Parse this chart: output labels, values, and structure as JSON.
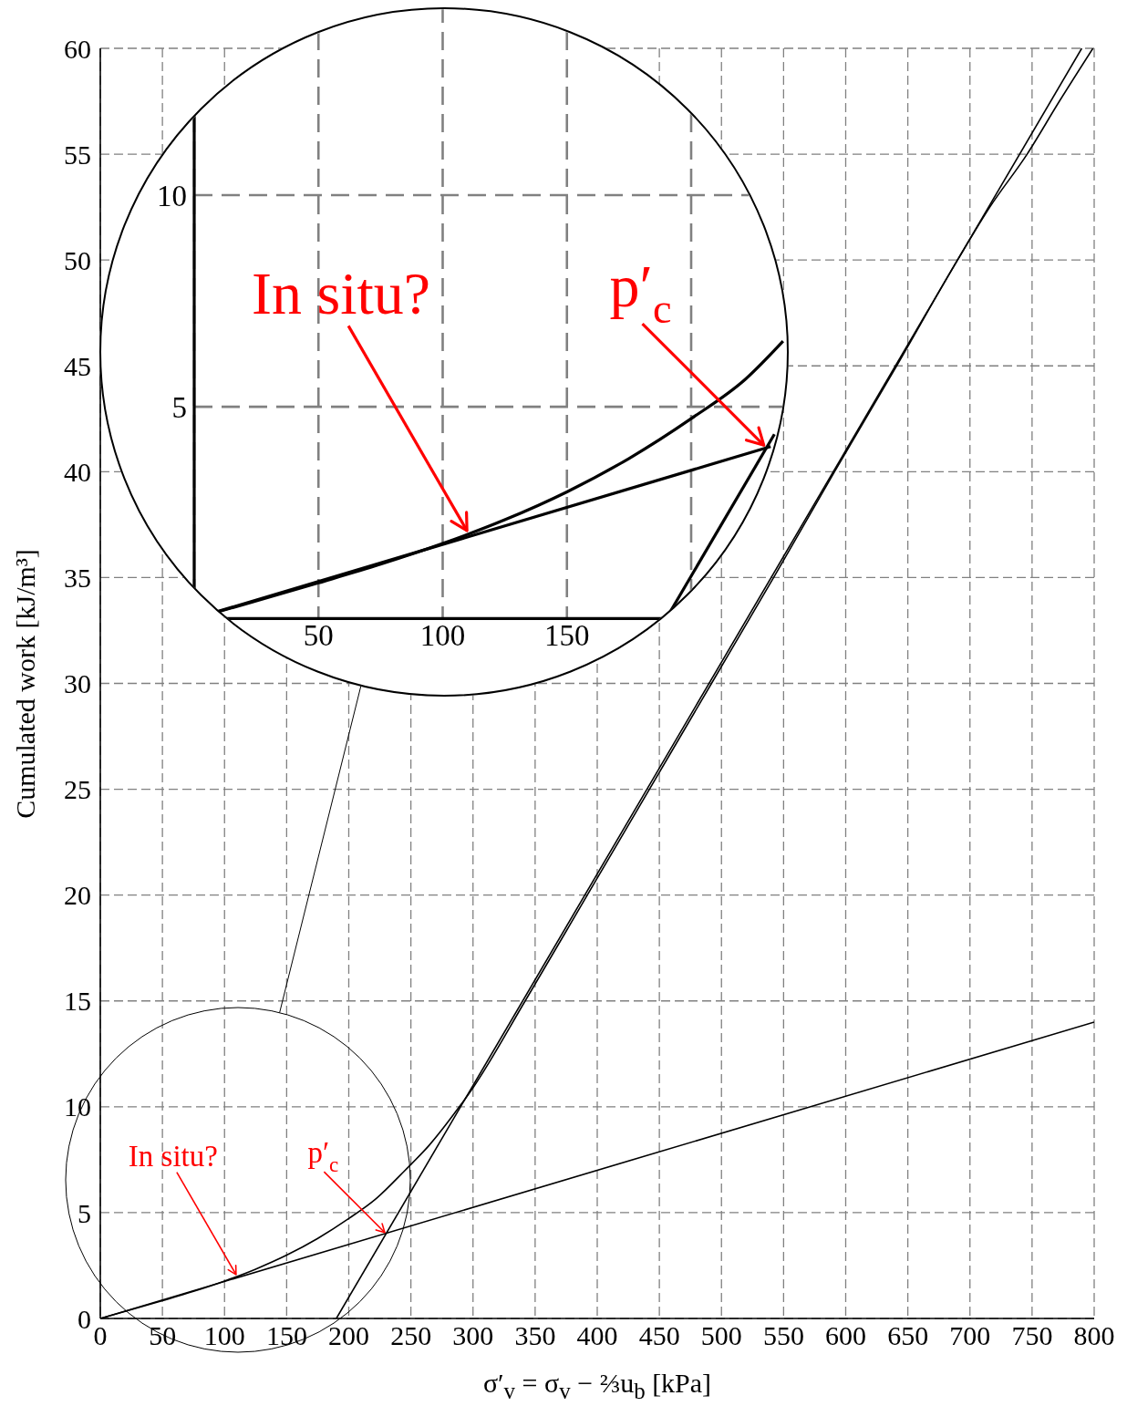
{
  "chart_data": [
    {
      "type": "line",
      "xlabel": "σ′$_{v}$ = σ$_{v}$ − ⅔u$_{b}$ [kPa]",
      "ylabel": "Cumulated work [kJ/m³]",
      "xlim": [
        0,
        800
      ],
      "xticks": [
        0,
        50,
        100,
        150,
        200,
        250,
        300,
        350,
        400,
        450,
        500,
        550,
        600,
        650,
        700,
        750,
        800
      ],
      "ylim": [
        0,
        60
      ],
      "yticks": [
        0,
        5,
        10,
        15,
        20,
        25,
        30,
        35,
        40,
        45,
        50,
        55,
        60
      ],
      "grid": true,
      "marker": "none",
      "series": [
        {
          "color": "#000000",
          "x": [
            0,
            20,
            50,
            75,
            100,
            125,
            150,
            175,
            200,
            222,
            245,
            265,
            289,
            300,
            342,
            392,
            442,
            492,
            542,
            591,
            641,
            690,
            716,
            746,
            772,
            799
          ],
          "values": [
            0,
            0.33,
            0.84,
            1.28,
            1.77,
            2.33,
            2.99,
            3.78,
            4.72,
            5.66,
            6.98,
            8.2,
            10,
            10.9,
            15,
            20,
            25,
            30,
            35,
            40,
            45,
            50,
            52.5,
            55,
            57.5,
            60
          ]
        },
        {
          "color": "#000000",
          "x": [
            0,
            800
          ],
          "values": [
            0,
            14
          ]
        },
        {
          "color": "#000000",
          "x": [
            190,
            790
          ],
          "values": [
            0,
            60
          ]
        }
      ],
      "annotations": [
        {
          "text": "In situ?",
          "x": 110,
          "y": 2.0
        },
        {
          "text": "p′$_{c}$",
          "x": 230,
          "y": 4.0
        }
      ]
    },
    {
      "type": "line",
      "xlim": [
        0,
        240
      ],
      "xticks": [
        50,
        100,
        150,
        {
          "value": 200,
          "label": null
        }
      ],
      "ylim": [
        0,
        14.5
      ],
      "yticks": [
        5,
        10
      ],
      "grid": true,
      "marker": "none",
      "series": [
        {
          "color": "#000000",
          "x": [
            0,
            20,
            50,
            75,
            100,
            125,
            150,
            175,
            200,
            222,
            237
          ],
          "values": [
            0,
            0.33,
            0.84,
            1.28,
            1.77,
            2.33,
            2.99,
            3.78,
            4.72,
            5.66,
            6.55
          ]
        },
        {
          "color": "#000000",
          "x": [
            0,
            232
          ],
          "values": [
            0,
            4.06
          ]
        },
        {
          "color": "#000000",
          "x": [
            190,
            233.5
          ],
          "values": [
            0,
            4.35
          ]
        }
      ],
      "annotations": [
        {
          "text": "In situ?",
          "x": 110.5,
          "y": 2.0
        },
        {
          "text": "p′$_{c}$",
          "x": 230.3,
          "y": 4.03
        }
      ]
    }
  ]
}
